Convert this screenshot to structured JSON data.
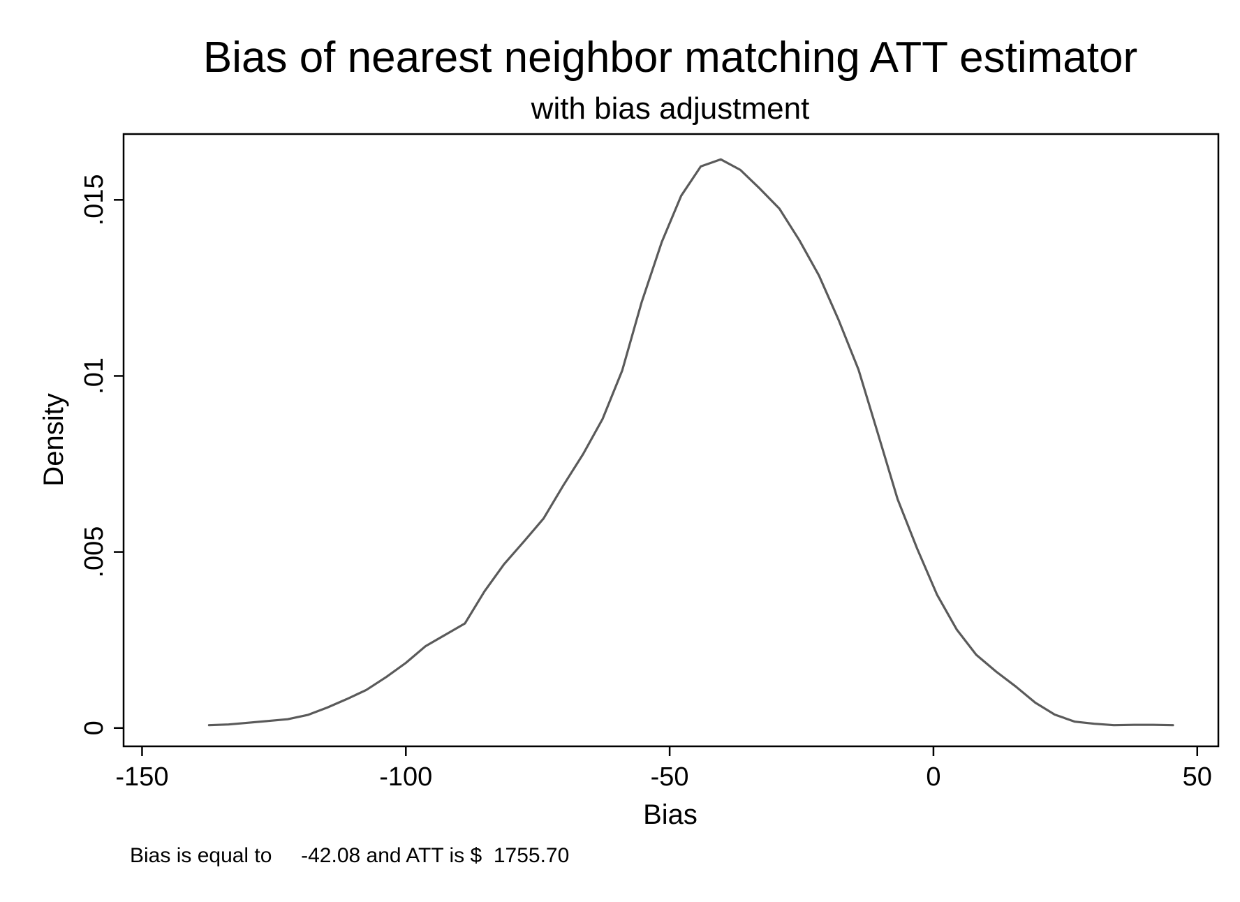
{
  "chart_data": {
    "type": "line",
    "title": "Bias of nearest neighbor matching ATT estimator",
    "subtitle": "with bias adjustment",
    "xlabel": "Bias",
    "ylabel": "Density",
    "xlim": [
      -153.5,
      54
    ],
    "ylim": [
      -0.00052,
      0.01687
    ],
    "x_ticks": [
      -150,
      -100,
      -50,
      0,
      50
    ],
    "x_tick_labels": [
      "-150",
      "-100",
      "-50",
      "0",
      "50"
    ],
    "y_ticks": [
      0,
      0.005,
      0.01,
      0.015
    ],
    "y_tick_labels": [
      "0",
      ".005",
      ".01",
      ".015"
    ],
    "grid": false,
    "legend": "none",
    "line_color": "#5a5a5a",
    "note": "Bias is equal to     -42.08 and ATT is $  1755.70",
    "series": [
      {
        "x": [
          -137.3,
          -133.6,
          -129.8,
          -126.1,
          -122.4,
          -118.6,
          -114.9,
          -111.2,
          -107.5,
          -103.7,
          -100.0,
          -96.3,
          -92.5,
          -88.8,
          -85.1,
          -81.4,
          -77.6,
          -73.9,
          -70.2,
          -66.4,
          -62.7,
          -59.0,
          -55.3,
          -51.5,
          -47.8,
          -44.1,
          -40.3,
          -36.6,
          -32.9,
          -29.2,
          -25.4,
          -21.7,
          -18.0,
          -14.2,
          -10.5,
          -6.8,
          -3.1,
          0.7,
          4.4,
          8.1,
          11.9,
          15.6,
          19.3,
          23.0,
          26.8,
          30.5,
          34.2,
          38.0,
          41.7,
          45.4
        ],
        "y": [
          8e-05,
          0.0001,
          0.00015,
          0.0002,
          0.00025,
          0.00037,
          0.00058,
          0.00082,
          0.00108,
          0.00145,
          0.00185,
          0.00232,
          0.00265,
          0.00297,
          0.00388,
          0.00465,
          0.0053,
          0.00595,
          0.00688,
          0.00778,
          0.00878,
          0.01015,
          0.0121,
          0.0138,
          0.01512,
          0.01595,
          0.01615,
          0.01585,
          0.01532,
          0.01475,
          0.01385,
          0.01285,
          0.0116,
          0.01018,
          0.00835,
          0.0065,
          0.0051,
          0.00378,
          0.0028,
          0.00208,
          0.0016,
          0.00118,
          0.00072,
          0.00038,
          0.00018,
          0.00012,
          8e-05,
          9e-05,
          9e-05,
          8e-05
        ]
      }
    ]
  }
}
